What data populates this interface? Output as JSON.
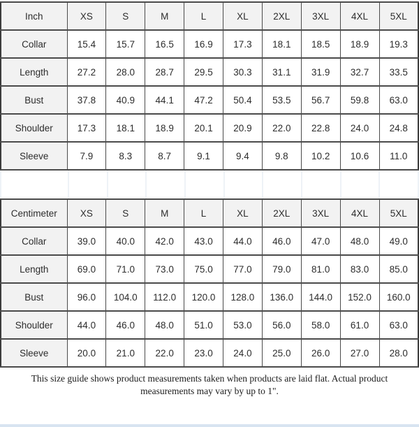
{
  "page": {
    "background": "#ffffff",
    "header_cell_bg": "#f2f2f2",
    "border_color": "#3c3c3c",
    "inner_border_color": "#4b4b4b",
    "spacer_line_color": "#eef2f7",
    "accent_strip_color": "#d8e4f1",
    "text_color": "#2d2d2d"
  },
  "chart_data": [
    {
      "type": "table",
      "title": "Inch",
      "columns": [
        "Inch",
        "XS",
        "S",
        "M",
        "L",
        "XL",
        "2XL",
        "3XL",
        "4XL",
        "5XL"
      ],
      "rows": [
        [
          "Collar",
          "15.4",
          "15.7",
          "16.5",
          "16.9",
          "17.3",
          "18.1",
          "18.5",
          "18.9",
          "19.3"
        ],
        [
          "Length",
          "27.2",
          "28.0",
          "28.7",
          "29.5",
          "30.3",
          "31.1",
          "31.9",
          "32.7",
          "33.5"
        ],
        [
          "Bust",
          "37.8",
          "40.9",
          "44.1",
          "47.2",
          "50.4",
          "53.5",
          "56.7",
          "59.8",
          "63.0"
        ],
        [
          "Shoulder",
          "17.3",
          "18.1",
          "18.9",
          "20.1",
          "20.9",
          "22.0",
          "22.8",
          "24.0",
          "24.8"
        ],
        [
          "Sleeve",
          "7.9",
          "8.3",
          "8.7",
          "9.1",
          "9.4",
          "9.8",
          "10.2",
          "10.6",
          "11.0"
        ]
      ]
    },
    {
      "type": "table",
      "title": "Centimeter",
      "columns": [
        "Centimeter",
        "XS",
        "S",
        "M",
        "L",
        "XL",
        "2XL",
        "3XL",
        "4XL",
        "5XL"
      ],
      "rows": [
        [
          "Collar",
          "39.0",
          "40.0",
          "42.0",
          "43.0",
          "44.0",
          "46.0",
          "47.0",
          "48.0",
          "49.0"
        ],
        [
          "Length",
          "69.0",
          "71.0",
          "73.0",
          "75.0",
          "77.0",
          "79.0",
          "81.0",
          "83.0",
          "85.0"
        ],
        [
          "Bust",
          "96.0",
          "104.0",
          "112.0",
          "120.0",
          "128.0",
          "136.0",
          "144.0",
          "152.0",
          "160.0"
        ],
        [
          "Shoulder",
          "44.0",
          "46.0",
          "48.0",
          "51.0",
          "53.0",
          "56.0",
          "58.0",
          "61.0",
          "63.0"
        ],
        [
          "Sleeve",
          "20.0",
          "21.0",
          "22.0",
          "23.0",
          "24.0",
          "25.0",
          "26.0",
          "27.0",
          "28.0"
        ]
      ]
    }
  ],
  "footer": {
    "note": "This size guide shows product measurements taken when products are laid flat. Actual product measurements may vary by up to 1\"."
  }
}
